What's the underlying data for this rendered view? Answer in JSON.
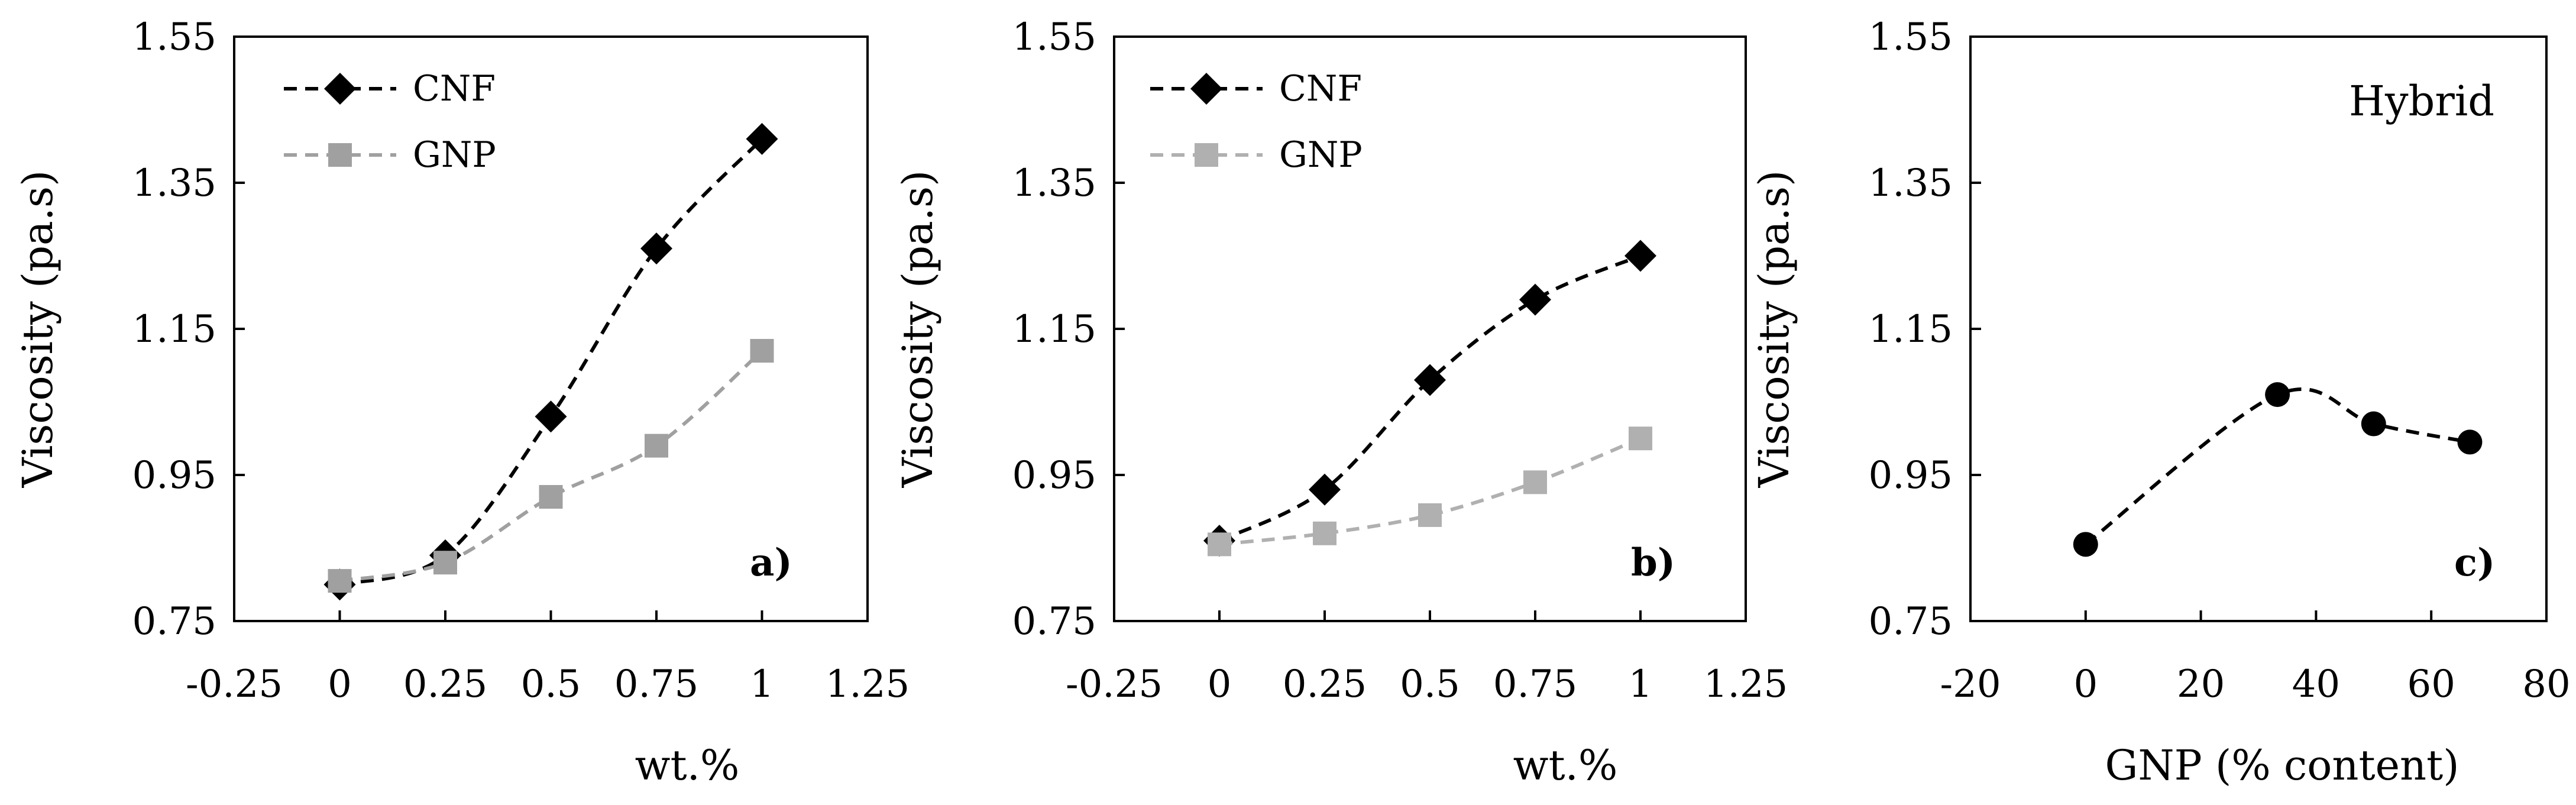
{
  "chart_data": [
    {
      "type": "line",
      "panel_label": "a)",
      "xlabel": "wt.%",
      "ylabel": "Viscosity (pa.s)",
      "xlim": [
        -0.25,
        1.25
      ],
      "ylim": [
        0.75,
        1.55
      ],
      "x_ticks": [
        "-0.25",
        "0",
        "0.25",
        "0.5",
        "0.75",
        "1",
        "1.25"
      ],
      "y_ticks": [
        "0.75",
        "0.95",
        "1.15",
        "1.35",
        "1.55"
      ],
      "legend_position": "top-left",
      "series": [
        {
          "name": "CNF",
          "marker": "diamond",
          "color": "#000000",
          "x": [
            0,
            0.25,
            0.5,
            0.75,
            1
          ],
          "values": [
            0.8,
            0.84,
            1.03,
            1.26,
            1.41
          ]
        },
        {
          "name": "GNP",
          "marker": "square",
          "color": "#a0a0a0",
          "x": [
            0,
            0.25,
            0.5,
            0.75,
            1
          ],
          "values": [
            0.805,
            0.83,
            0.92,
            0.99,
            1.12
          ]
        }
      ]
    },
    {
      "type": "line",
      "panel_label": "b)",
      "xlabel": "wt.%",
      "ylabel": "Viscosity (pa.s)",
      "xlim": [
        -0.25,
        1.25
      ],
      "ylim": [
        0.75,
        1.55
      ],
      "x_ticks": [
        "-0.25",
        "0",
        "0.25",
        "0.5",
        "0.75",
        "1",
        "1.25"
      ],
      "y_ticks": [
        "0.75",
        "0.95",
        "1.15",
        "1.35",
        "1.55"
      ],
      "legend_position": "top-left",
      "series": [
        {
          "name": "CNF",
          "marker": "diamond",
          "color": "#000000",
          "x": [
            0,
            0.25,
            0.5,
            0.75,
            1
          ],
          "values": [
            0.86,
            0.93,
            1.08,
            1.19,
            1.25
          ]
        },
        {
          "name": "GNP",
          "marker": "square",
          "color": "#b0b0b0",
          "x": [
            0,
            0.25,
            0.5,
            0.75,
            1
          ],
          "values": [
            0.855,
            0.87,
            0.895,
            0.94,
            1.0
          ]
        }
      ]
    },
    {
      "type": "line",
      "panel_label": "c)",
      "annotation": "Hybrid",
      "xlabel": "GNP (% content)",
      "ylabel": "Viscosity (pa.s)",
      "xlim": [
        -20,
        80
      ],
      "ylim": [
        0.75,
        1.55
      ],
      "x_ticks": [
        "-20",
        "0",
        "20",
        "40",
        "60",
        "80"
      ],
      "y_ticks": [
        "0.75",
        "0.95",
        "1.15",
        "1.35",
        "1.55"
      ],
      "series": [
        {
          "name": "Hybrid",
          "marker": "circle",
          "color": "#000000",
          "x": [
            0,
            33.3,
            50,
            66.7
          ],
          "values": [
            0.855,
            1.06,
            1.02,
            0.995
          ]
        }
      ]
    }
  ]
}
